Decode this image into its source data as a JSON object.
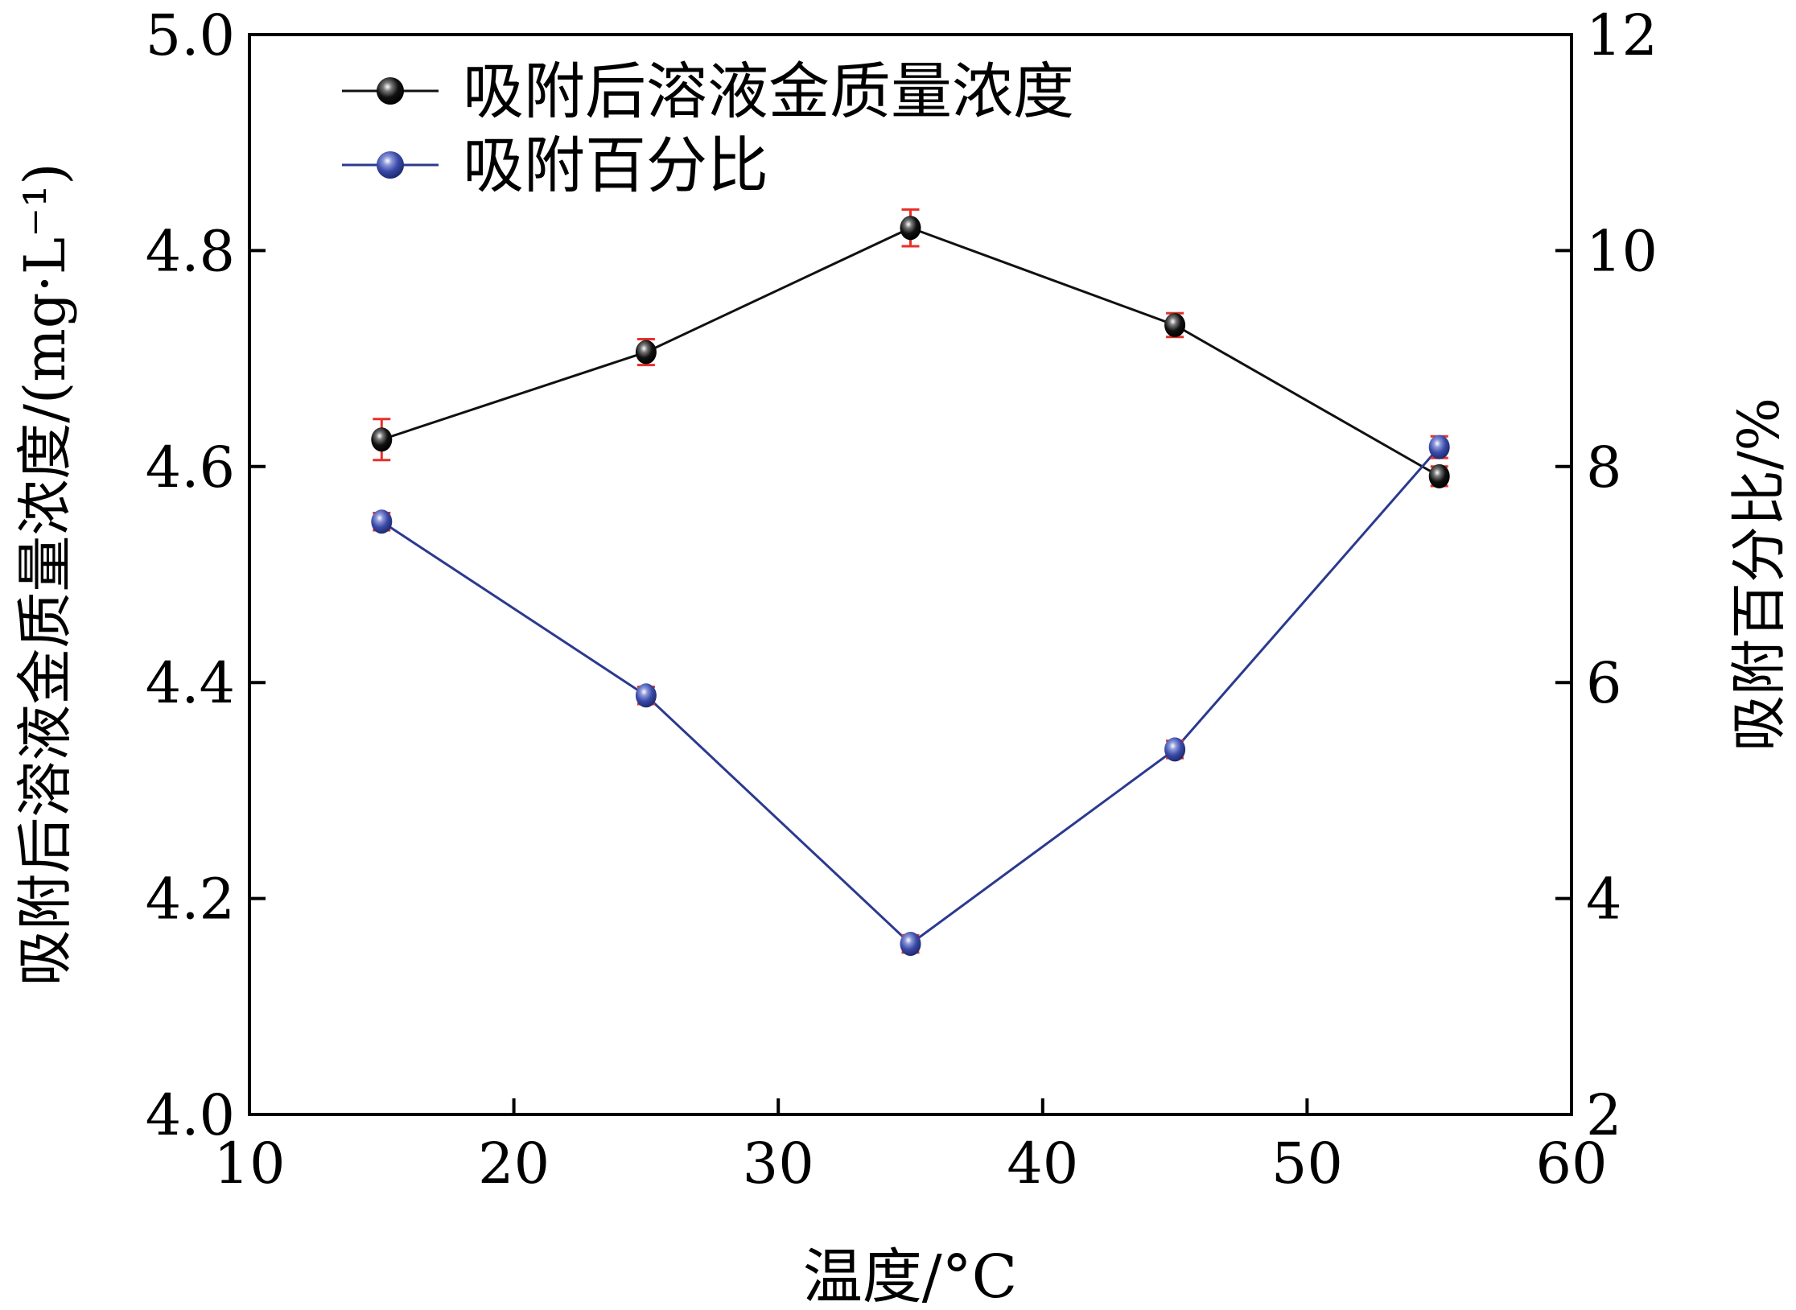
{
  "chart_data": {
    "type": "line",
    "title": "",
    "xlabel": "温度/°C",
    "ylabel": "吸附后溶液金质量浓度/(mg·L⁻¹)",
    "ylabel_right": "吸附百分比/%",
    "xlim": [
      10,
      60
    ],
    "ylim": [
      4.0,
      5.0
    ],
    "ylim_right": [
      2,
      12
    ],
    "xticks": [
      "10",
      "20",
      "30",
      "40",
      "50",
      "60"
    ],
    "yticks": [
      "4.0",
      "4.2",
      "4.4",
      "4.6",
      "4.8",
      "5.0"
    ],
    "yticks_right": [
      "2",
      "4",
      "6",
      "8",
      "10",
      "12"
    ],
    "grid": false,
    "legend_position": "top-left",
    "x": [
      15,
      25,
      35,
      45,
      55
    ],
    "series": [
      {
        "name": "吸附后溶液金质量浓度",
        "axis": "left",
        "color": "#111111",
        "values": [
          4.625,
          4.706,
          4.821,
          4.731,
          4.591
        ],
        "errors": [
          0.019,
          0.012,
          0.017,
          0.011,
          0.009
        ]
      },
      {
        "name": "吸附百分比",
        "axis": "right",
        "color": "#2b3a8f",
        "values": [
          7.49,
          5.88,
          3.58,
          5.38,
          8.18
        ],
        "errors": [
          0.08,
          0.08,
          0.08,
          0.08,
          0.1
        ]
      }
    ],
    "errorbar_color": "#e8302a"
  }
}
